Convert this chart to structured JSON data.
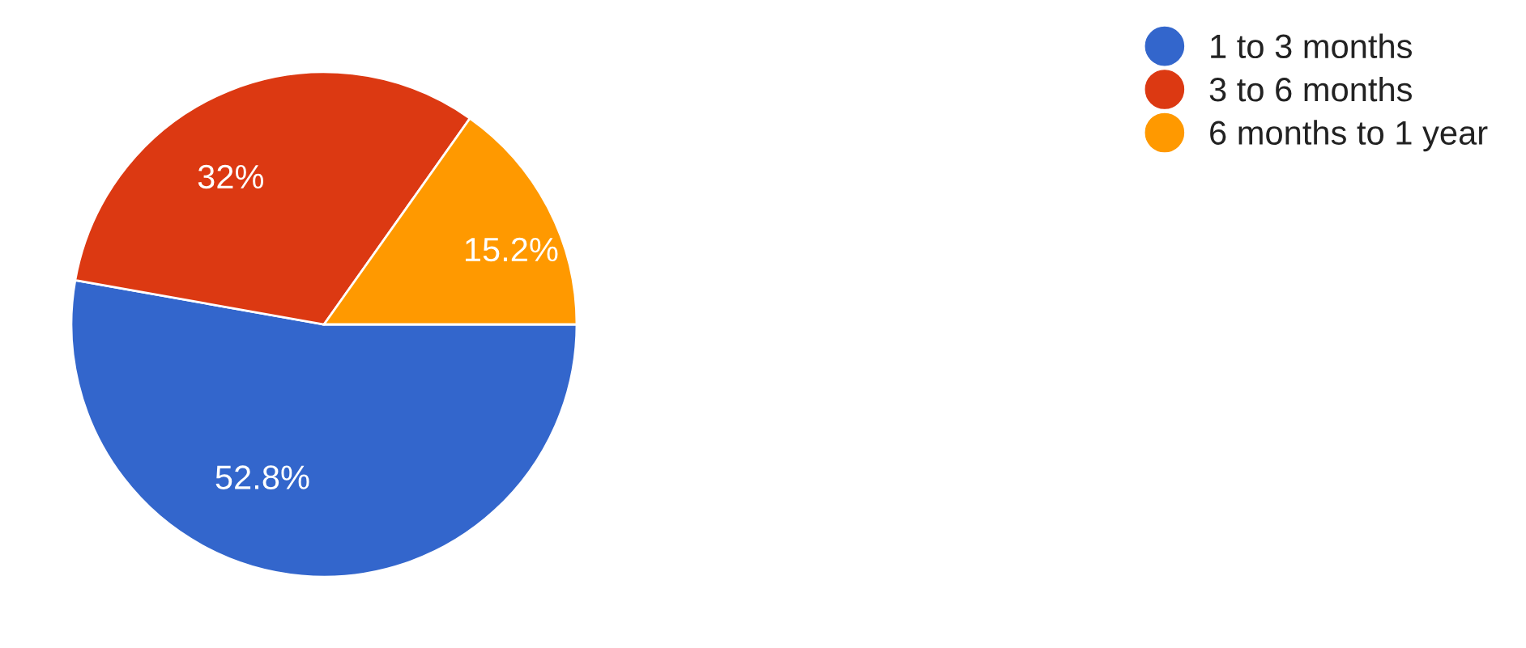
{
  "chart_data": {
    "type": "pie",
    "categories": [
      "1 to 3 months",
      "3 to 6 months",
      "6 months to 1 year"
    ],
    "values": [
      52.8,
      32,
      15.2
    ],
    "value_labels": [
      "52.8%",
      "32%",
      "15.2%"
    ],
    "colors": [
      "#3366cc",
      "#dc3912",
      "#ff9900"
    ],
    "legend": "top right"
  }
}
